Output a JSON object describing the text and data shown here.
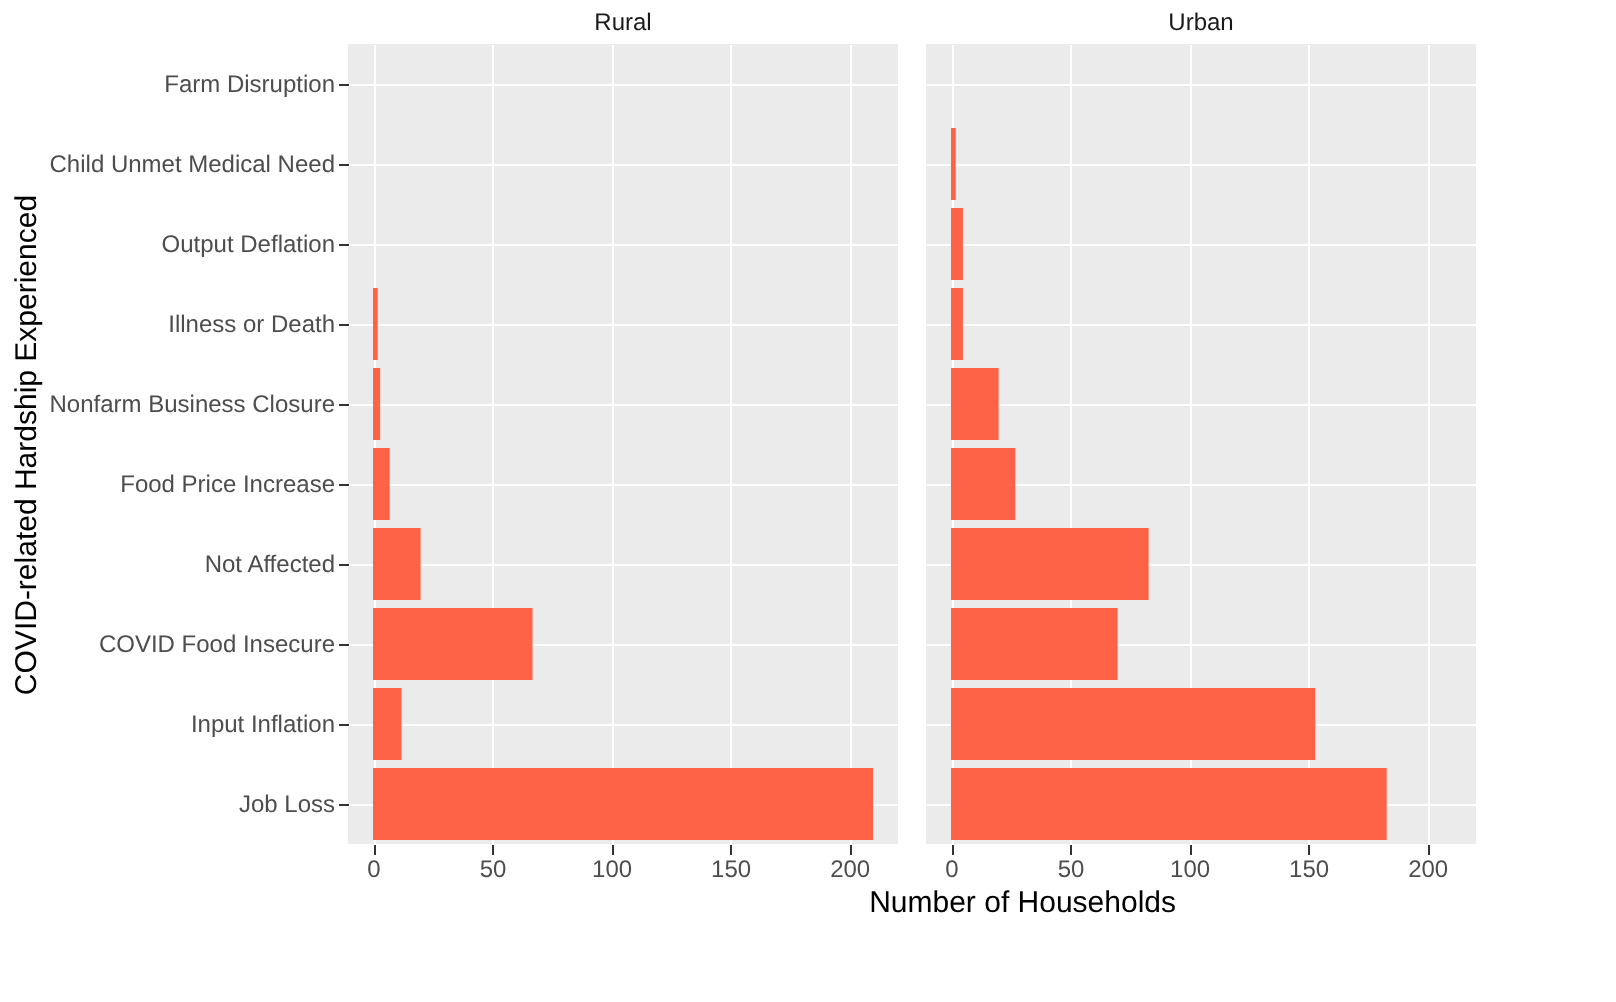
{
  "chart_data": [
    {
      "type": "bar",
      "orientation": "horizontal",
      "title": "Rural",
      "xlabel": "Number of Households",
      "ylabel": "COVID-related Hardship Experienced",
      "categories": [
        "Farm Disruption",
        "Child Unmet Medical Need",
        "Output Deflation",
        "Illness or Death",
        "Nonfarm Business Closure",
        "Food Price Increase",
        "Not Affected",
        "COVID Food Insecure",
        "Input Inflation",
        "Job Loss"
      ],
      "values": [
        0,
        0,
        0,
        2,
        3,
        7,
        20,
        67,
        12,
        210
      ],
      "color": "#ff6347",
      "xlim": [
        -10.5,
        220.5
      ],
      "xticks": [
        0,
        50,
        100,
        150,
        200
      ],
      "grid": true
    },
    {
      "type": "bar",
      "orientation": "horizontal",
      "title": "Urban",
      "categories": [
        "Farm Disruption",
        "Child Unmet Medical Need",
        "Output Deflation",
        "Illness or Death",
        "Nonfarm Business Closure",
        "Food Price Increase",
        "Not Affected",
        "COVID Food Insecure",
        "Input Inflation",
        "Job Loss"
      ],
      "values": [
        0,
        2,
        5,
        5,
        20,
        27,
        83,
        70,
        153,
        183
      ],
      "color": "#ff6347",
      "xlim": [
        -10.5,
        220.5
      ],
      "xticks": [
        0,
        50,
        100,
        150,
        200
      ],
      "grid": true,
      "tick_labels": "x"
    }
  ]
}
